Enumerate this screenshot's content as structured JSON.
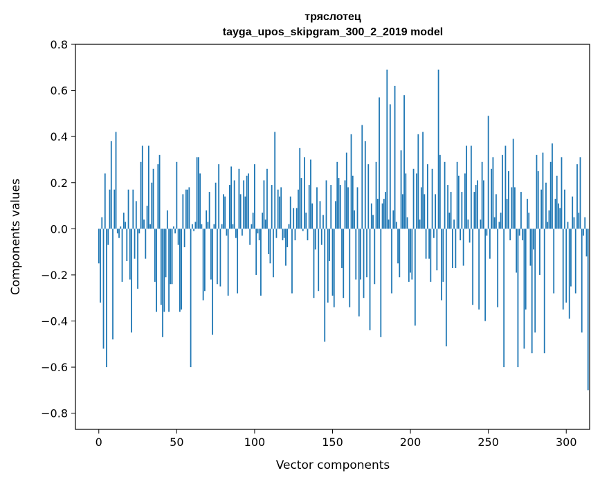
{
  "chart_data": {
    "type": "bar",
    "title": "тряслотец",
    "subtitle": "tayga_upos_skipgram_300_2_2019 model",
    "xlabel": "Vector components",
    "ylabel": "Components values",
    "xlim": [
      -15,
      315
    ],
    "ylim": [
      -0.87,
      0.8
    ],
    "xticks": [
      0,
      50,
      100,
      150,
      200,
      250,
      300
    ],
    "yticks": [
      -0.8,
      -0.6,
      -0.4,
      -0.2,
      0.0,
      0.2,
      0.4,
      0.6,
      0.8
    ],
    "ytick_labels": [
      "−0.8",
      "−0.6",
      "−0.4",
      "−0.2",
      "0.0",
      "0.2",
      "0.4",
      "0.6",
      "0.8"
    ],
    "bar_color": "#1f77b4",
    "grid": false,
    "values": [
      -0.15,
      -0.32,
      0.05,
      -0.52,
      0.24,
      -0.6,
      -0.07,
      0.17,
      0.38,
      -0.48,
      0.17,
      0.42,
      -0.02,
      -0.04,
      0.01,
      -0.23,
      0.07,
      0.03,
      -0.14,
      0.17,
      -0.22,
      -0.45,
      0.17,
      -0.13,
      0.12,
      -0.26,
      -0.02,
      0.29,
      0.36,
      0.04,
      -0.13,
      0.1,
      0.36,
      0.02,
      0.2,
      0.26,
      -0.23,
      -0.36,
      0.28,
      0.32,
      -0.33,
      -0.47,
      -0.36,
      -0.21,
      0.08,
      -0.36,
      -0.24,
      -0.24,
      0.01,
      -0.02,
      0.29,
      -0.07,
      -0.36,
      -0.35,
      0.15,
      -0.08,
      0.17,
      0.17,
      0.18,
      -0.6,
      0.02,
      -0.01,
      0.03,
      0.31,
      0.31,
      0.24,
      0.02,
      -0.31,
      -0.27,
      0.08,
      0.03,
      0.16,
      -0.22,
      -0.46,
      0.02,
      0.2,
      -0.24,
      0.28,
      -0.25,
      0.02,
      0.15,
      0.14,
      -0.03,
      -0.29,
      0.19,
      0.27,
      0.02,
      0.21,
      -0.04,
      -0.28,
      0.26,
      0.15,
      -0.03,
      0.21,
      0.14,
      0.23,
      0.24,
      -0.07,
      0.02,
      0.07,
      0.28,
      -0.2,
      -0.02,
      -0.05,
      -0.29,
      0.07,
      0.21,
      0.04,
      0.26,
      -0.11,
      -0.15,
      0.19,
      -0.21,
      0.42,
      -0.04,
      0.17,
      0.14,
      0.18,
      -0.05,
      -0.04,
      -0.16,
      -0.08,
      0.02,
      0.14,
      -0.28,
      0.09,
      -0.05,
      0.09,
      0.17,
      0.35,
      0.22,
      -0.01,
      0.31,
      0.07,
      -0.05,
      0.19,
      0.3,
      0.11,
      -0.3,
      -0.09,
      0.18,
      -0.27,
      0.12,
      -0.07,
      0.06,
      -0.49,
      0.21,
      -0.32,
      -0.14,
      0.19,
      -0.29,
      -0.34,
      0.12,
      0.29,
      0.22,
      0.19,
      -0.17,
      -0.3,
      0.21,
      0.33,
      0.18,
      -0.34,
      0.41,
      0.23,
      0.08,
      -0.22,
      0.18,
      -0.38,
      -0.22,
      0.45,
      -0.3,
      0.38,
      -0.21,
      0.28,
      -0.44,
      0.11,
      0.06,
      -0.24,
      0.29,
      0.13,
      0.57,
      -0.47,
      0.11,
      0.13,
      0.16,
      0.69,
      0.04,
      0.54,
      -0.28,
      0.08,
      0.62,
      0.03,
      -0.15,
      -0.21,
      0.34,
      0.15,
      0.58,
      0.24,
      0.05,
      -0.23,
      -0.19,
      -0.22,
      0.26,
      -0.42,
      0.24,
      0.41,
      0.04,
      0.18,
      0.42,
      0.15,
      -0.13,
      0.28,
      -0.13,
      -0.23,
      0.26,
      -0.04,
      0.15,
      -0.18,
      0.69,
      0.32,
      -0.31,
      -0.23,
      0.29,
      -0.51,
      0.19,
      0.07,
      0.16,
      -0.17,
      0.04,
      -0.17,
      0.29,
      0.23,
      -0.05,
      0.16,
      -0.16,
      0.24,
      0.36,
      0.04,
      -0.06,
      0.36,
      -0.33,
      0.16,
      0.19,
      0.21,
      -0.35,
      0.04,
      0.29,
      0.21,
      -0.4,
      -0.03,
      0.49,
      -0.13,
      0.26,
      0.31,
      0.05,
      0.15,
      -0.34,
      0.03,
      0.07,
      0.32,
      -0.6,
      0.36,
      0.13,
      0.25,
      -0.05,
      0.18,
      0.39,
      0.18,
      -0.19,
      -0.6,
      -0.03,
      0.16,
      -0.05,
      -0.52,
      -0.35,
      0.13,
      0.07,
      -0.16,
      -0.54,
      -0.09,
      -0.45,
      0.32,
      0.25,
      -0.2,
      0.17,
      0.33,
      -0.54,
      0.2,
      0.03,
      0.08,
      0.29,
      0.37,
      -0.28,
      0.13,
      0.23,
      0.11,
      0.09,
      0.31,
      -0.35,
      0.17,
      -0.32,
      0.03,
      -0.39,
      -0.25,
      0.14,
      0.05,
      -0.28,
      0.28,
      0.07,
      0.31,
      -0.45,
      -0.03,
      0.05,
      -0.12,
      -0.7
    ]
  }
}
